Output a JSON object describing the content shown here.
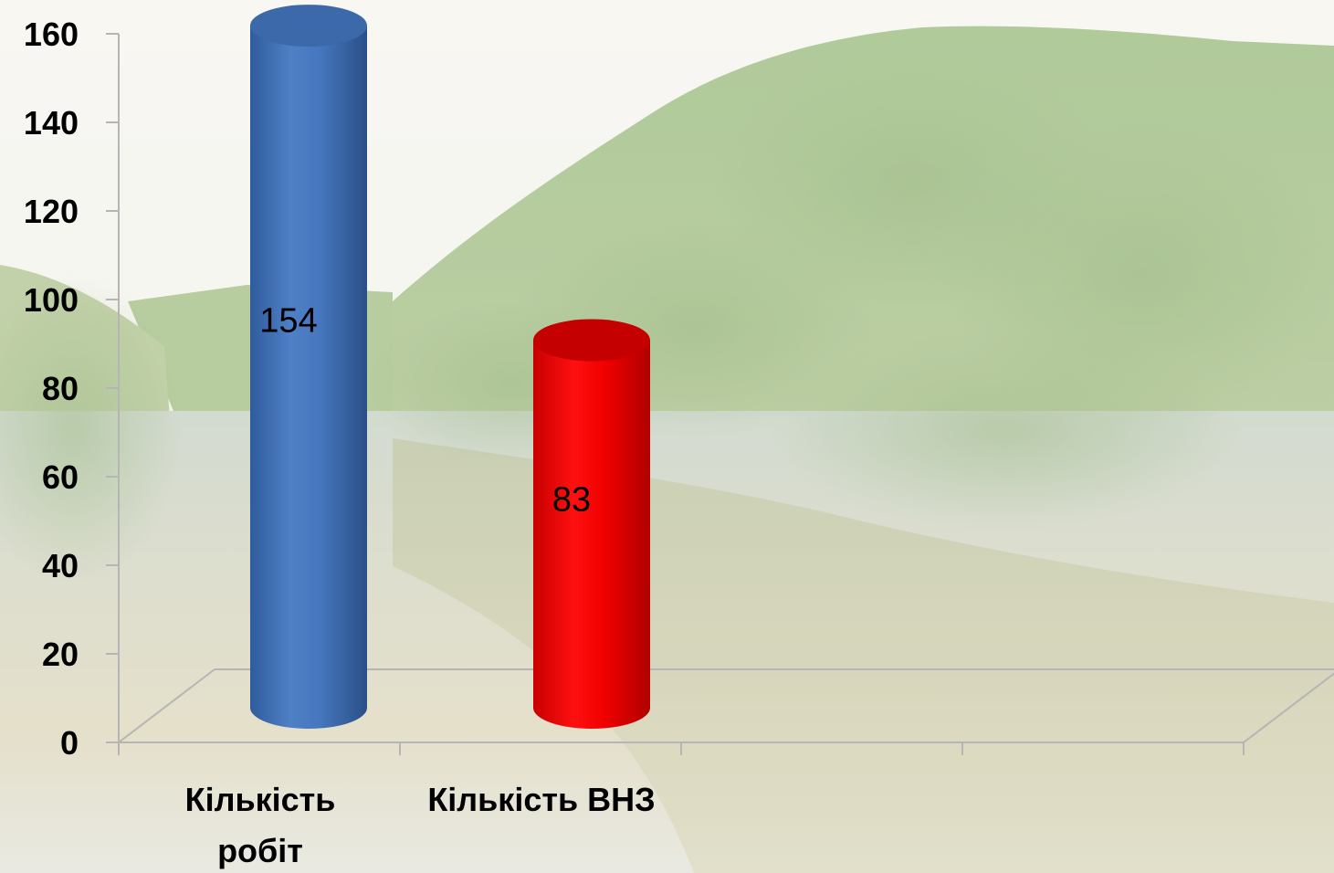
{
  "chart_data": {
    "type": "bar",
    "style": "3d-cylinder",
    "categories": [
      "Кількість робіт",
      "Кількість ВНЗ"
    ],
    "category_lines": [
      [
        "Кількість",
        "робіт"
      ],
      [
        "Кількість ВНЗ"
      ]
    ],
    "values": [
      154,
      83
    ],
    "value_labels": [
      "154",
      "83"
    ],
    "bar_colors": [
      "#3f6fb4",
      "#e00000"
    ],
    "ylim": [
      0,
      160
    ],
    "yticks": [
      0,
      20,
      40,
      60,
      80,
      100,
      120,
      140,
      160
    ],
    "ytick_labels": [
      "0",
      "20",
      "40",
      "60",
      "80",
      "100",
      "120",
      "140",
      "160"
    ],
    "title": "",
    "xlabel": "",
    "ylabel": "",
    "grid": false,
    "legend": "none",
    "background": "river-landscape-photo"
  }
}
